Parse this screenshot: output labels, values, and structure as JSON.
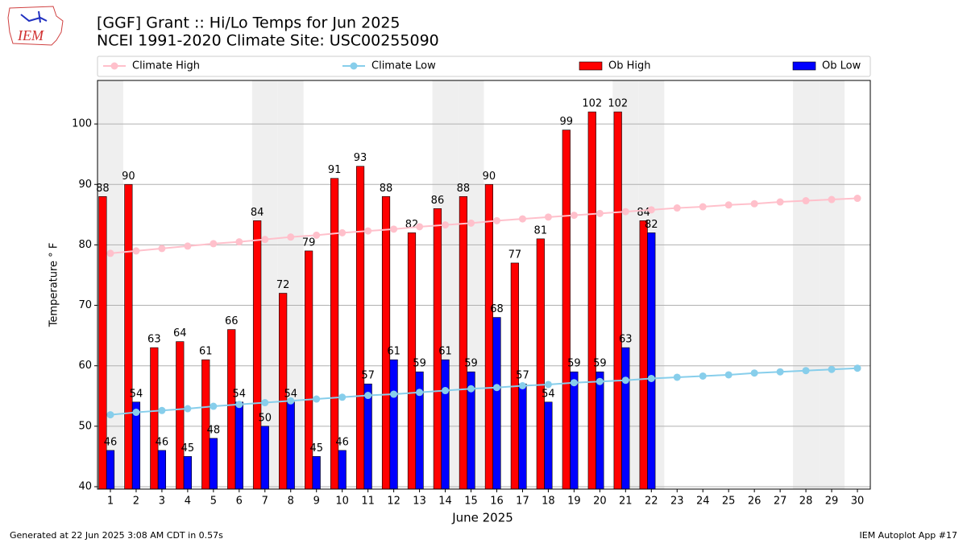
{
  "logo_text": "IEM",
  "footer": {
    "left": "Generated at 22 Jun 2025 3:08 AM CDT in 0.57s",
    "right": "IEM Autoplot App #17"
  },
  "chart_data": {
    "type": "bar",
    "title": "[GGF] Grant :: Hi/Lo Temps for Jun 2025",
    "subtitle": "NCEI 1991-2020 Climate Site: USC00255090",
    "x_label": "June 2025",
    "y_label": "Temperature ° F",
    "x": [
      1,
      2,
      3,
      4,
      5,
      6,
      7,
      8,
      9,
      10,
      11,
      12,
      13,
      14,
      15,
      16,
      17,
      18,
      19,
      20,
      21,
      22,
      23,
      24,
      25,
      26,
      27,
      28,
      29,
      30
    ],
    "xticks": [
      1,
      2,
      3,
      4,
      5,
      6,
      7,
      8,
      9,
      10,
      11,
      12,
      13,
      14,
      15,
      16,
      17,
      18,
      19,
      20,
      21,
      22,
      23,
      24,
      25,
      26,
      27,
      28,
      29,
      30
    ],
    "xlim": [
      0.5,
      30.5
    ],
    "ylim": [
      39.6,
      107.2
    ],
    "yticks": [
      40,
      50,
      60,
      70,
      80,
      90,
      100
    ],
    "grid": true,
    "shaded_days": [
      1,
      7,
      8,
      14,
      15,
      21,
      22,
      28,
      29
    ],
    "series": [
      {
        "name": "Climate High",
        "type": "line",
        "color": "#ffc0cb",
        "values": [
          78.6,
          79.0,
          79.4,
          79.8,
          80.2,
          80.5,
          80.9,
          81.3,
          81.6,
          82.0,
          82.3,
          82.6,
          83.0,
          83.3,
          83.6,
          84.0,
          84.3,
          84.6,
          84.9,
          85.2,
          85.5,
          85.8,
          86.1,
          86.3,
          86.6,
          86.8,
          87.1,
          87.3,
          87.5,
          87.7
        ]
      },
      {
        "name": "Climate Low",
        "type": "line",
        "color": "#87ceeb",
        "values": [
          51.9,
          52.3,
          52.6,
          52.9,
          53.3,
          53.6,
          53.9,
          54.2,
          54.5,
          54.8,
          55.1,
          55.3,
          55.6,
          55.9,
          56.2,
          56.4,
          56.7,
          56.9,
          57.2,
          57.4,
          57.6,
          57.9,
          58.1,
          58.3,
          58.5,
          58.8,
          59.0,
          59.2,
          59.4,
          59.6
        ]
      },
      {
        "name": "Ob High",
        "type": "bar",
        "color": "#ff0000",
        "offset": -0.3,
        "values": [
          88,
          90,
          63,
          64,
          61,
          66,
          84,
          72,
          79,
          91,
          93,
          88,
          82,
          86,
          88,
          90,
          77,
          81,
          99,
          102,
          102,
          84,
          null,
          null,
          null,
          null,
          null,
          null,
          null,
          null
        ]
      },
      {
        "name": "Ob Low",
        "type": "bar",
        "color": "#0000ff",
        "offset": 0,
        "values": [
          46,
          54,
          46,
          45,
          48,
          54,
          50,
          54,
          45,
          46,
          57,
          61,
          59,
          61,
          59,
          68,
          57,
          54,
          59,
          59,
          63,
          82,
          null,
          null,
          null,
          null,
          null,
          null,
          null,
          null
        ]
      }
    ]
  }
}
